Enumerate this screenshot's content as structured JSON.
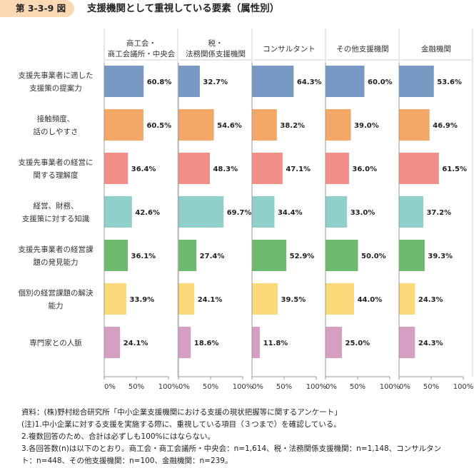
{
  "figure": {
    "number": "第 3-3-9 図",
    "title": "支援機関として重視している要素（属性別）"
  },
  "colors": {
    "badge": "#fbd9b5",
    "categories": [
      "#7799c4",
      "#f4a868",
      "#f18f86",
      "#8fd0cb",
      "#6dba6d",
      "#fbd978",
      "#d49fc3"
    ]
  },
  "chart_data": {
    "type": "bar",
    "orientation": "horizontal",
    "categories": [
      [
        "支援先事業者に適した",
        "支援策の提案力"
      ],
      [
        "接触頻度、",
        "話のしやすさ"
      ],
      [
        "支援先事業者の経営に",
        "関する理解度"
      ],
      [
        "経営、財務、",
        "支援策に対する知識"
      ],
      [
        "支援先事業者の経営課",
        "題の発見能力"
      ],
      [
        "個別の経営課題の解決",
        "能力"
      ],
      [
        "専門家との人脈"
      ]
    ],
    "panels": [
      {
        "name": [
          "商工会・",
          "商工会議所・中央会"
        ],
        "values": [
          60.8,
          60.5,
          36.4,
          42.6,
          36.1,
          33.9,
          24.1
        ]
      },
      {
        "name": [
          "税・",
          "法務関係支援機関"
        ],
        "values": [
          32.7,
          54.6,
          48.3,
          69.7,
          27.4,
          24.1,
          18.6
        ]
      },
      {
        "name": [
          "コンサルタント"
        ],
        "values": [
          64.3,
          38.2,
          47.1,
          34.4,
          52.9,
          39.5,
          11.8
        ]
      },
      {
        "name": [
          "その他支援機関"
        ],
        "values": [
          60.0,
          39.0,
          36.0,
          33.0,
          50.0,
          44.0,
          25.0
        ]
      },
      {
        "name": [
          "金融機関"
        ],
        "values": [
          53.6,
          46.9,
          61.5,
          37.2,
          39.3,
          24.3,
          24.3
        ]
      }
    ],
    "xlim": [
      0,
      100
    ],
    "xticks": [
      "0%",
      "50%",
      "100%"
    ],
    "value_suffix": "%"
  },
  "notes": [
    "資料：(株)野村総合研究所「中小企業支援機関における支援の現状把握等に関するアンケート」",
    "(注)1.中小企業に対する支援を実施する際に、重視している項目（３つまで）を確認している。",
    "2.複数回答のため、合計は必ずしも100%にはならない。",
    "3.各回答数(n)は以下のとおり。商工会・商工会議所・中央会：n=1,614、税・法務関係支援機関：n=1,148、コンサルタン",
    "ト：n=448、その他支援機関：n=100、金融機関：n=239。"
  ]
}
